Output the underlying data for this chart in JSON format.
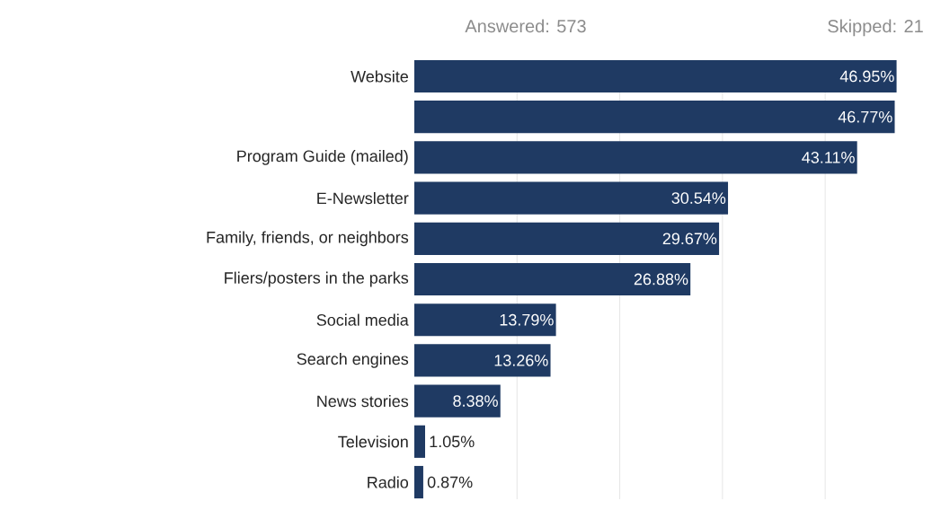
{
  "chart_data": {
    "type": "bar",
    "orientation": "horizontal",
    "annotations": [
      "Answered: 573",
      "Skipped: 21"
    ],
    "categories": [
      "Website",
      null,
      "Program Guide (mailed)",
      "E-Newsletter",
      "Family, friends, or neighbors",
      "Fliers/posters in the parks",
      "Social media",
      "Search engines",
      "News stories",
      "Television",
      "Radio"
    ],
    "values": [
      46.95,
      46.77,
      43.11,
      30.54,
      29.67,
      26.88,
      13.79,
      13.26,
      8.38,
      1.05,
      0.87
    ],
    "value_labels": [
      "46.95%",
      "46.77%",
      "43.11%",
      "30.54%",
      "29.67%",
      "26.88%",
      "13.79%",
      "13.26%",
      "8.38%",
      "1.05%",
      "0.87%"
    ],
    "color": "#1f3a63",
    "xticks": [
      {
        "value": 10,
        "label": null
      },
      {
        "value": 20,
        "label": null
      },
      {
        "value": 30,
        "label": null
      },
      {
        "value": 40,
        "label": null
      }
    ],
    "grid": "x",
    "tick_labels": "y"
  }
}
